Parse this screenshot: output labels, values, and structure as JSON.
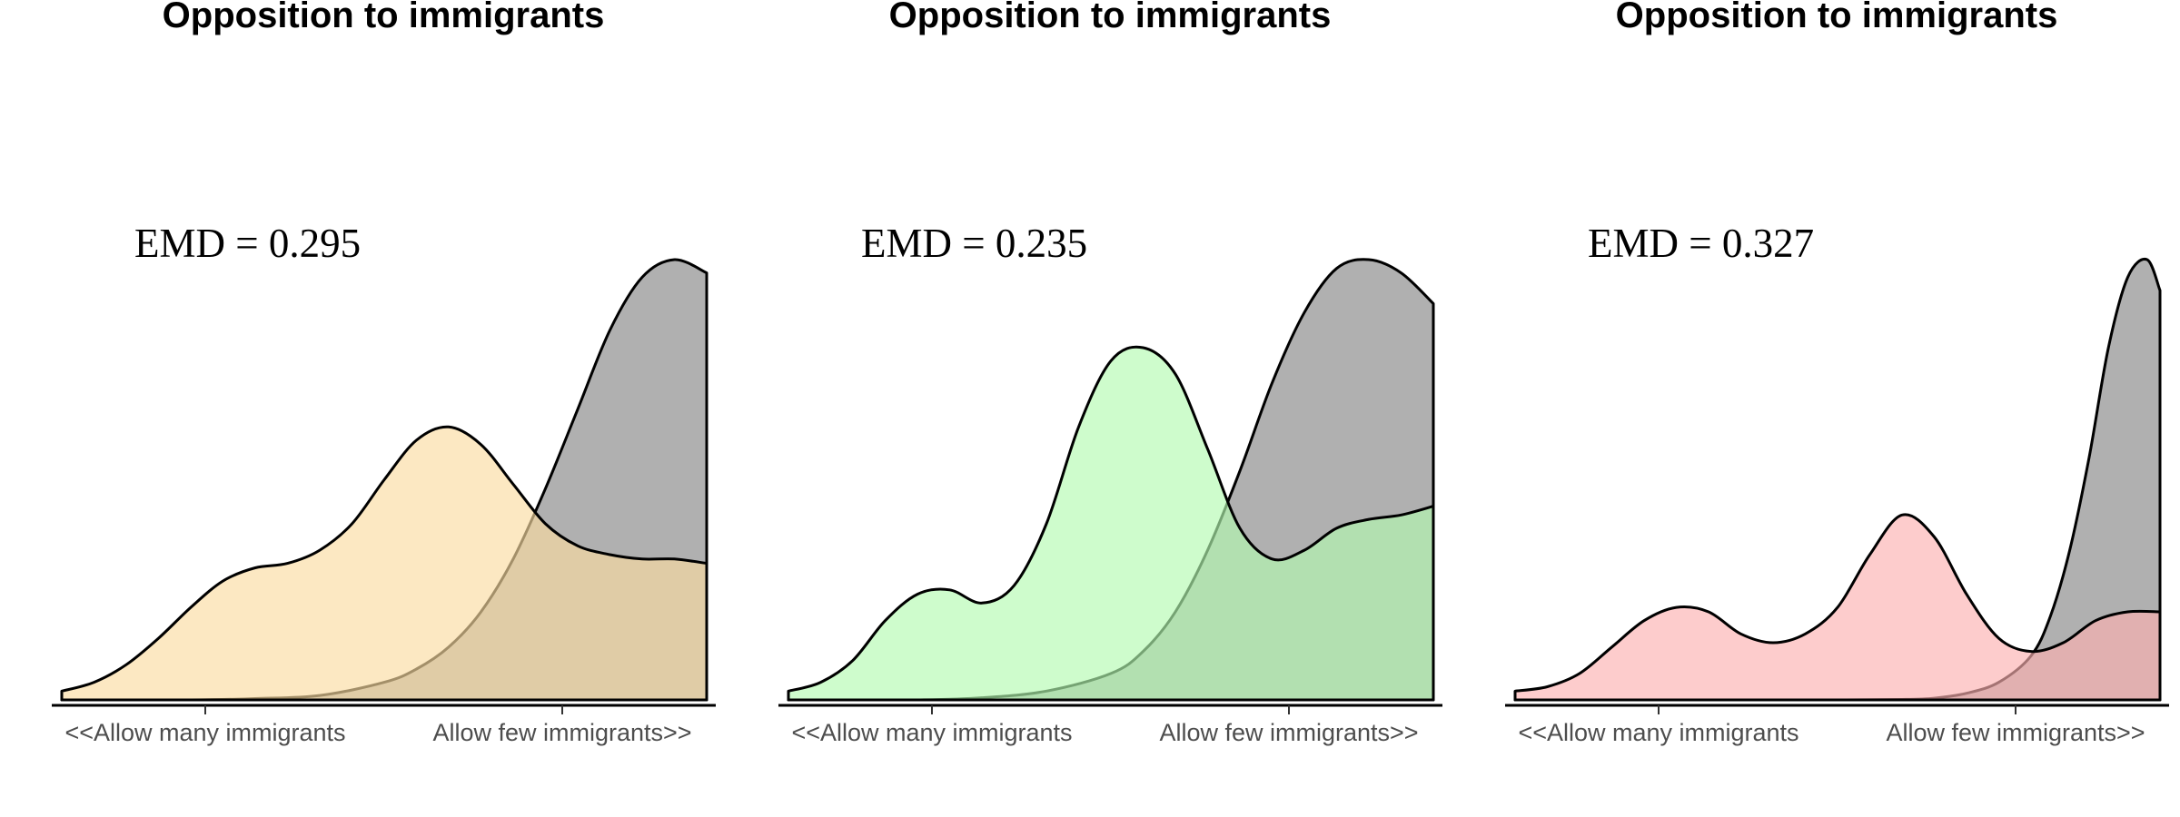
{
  "chart_data": [
    {
      "type": "area",
      "title": "Opposition to immigrants",
      "annotation": "EMD = 0.295",
      "x_tick_labels": [
        "<<Allow many immigrants",
        "Allow few immigrants>>"
      ],
      "x_ticks": [
        0.25,
        0.75
      ],
      "xlim": [
        0,
        1
      ],
      "ylim": [
        0,
        1
      ],
      "series": [
        {
          "color": "#b0b0b0",
          "x": [
            0.0,
            0.1,
            0.2,
            0.3,
            0.4,
            0.5,
            0.55,
            0.6,
            0.65,
            0.7,
            0.75,
            0.8,
            0.85,
            0.9,
            0.95,
            1.0
          ],
          "y": [
            0.0,
            0.0,
            0.0,
            0.003,
            0.01,
            0.04,
            0.07,
            0.12,
            0.2,
            0.32,
            0.48,
            0.66,
            0.84,
            0.96,
            1.0,
            0.97
          ]
        },
        {
          "color": "#fbdca2",
          "x": [
            0.0,
            0.05,
            0.1,
            0.15,
            0.2,
            0.25,
            0.3,
            0.35,
            0.4,
            0.45,
            0.5,
            0.55,
            0.6,
            0.65,
            0.7,
            0.75,
            0.8,
            0.85,
            0.9,
            0.95,
            1.0
          ],
          "y": [
            0.02,
            0.04,
            0.08,
            0.14,
            0.21,
            0.27,
            0.3,
            0.31,
            0.34,
            0.4,
            0.5,
            0.59,
            0.62,
            0.58,
            0.49,
            0.4,
            0.35,
            0.33,
            0.32,
            0.32,
            0.31
          ]
        }
      ]
    },
    {
      "type": "area",
      "title": "Opposition to immigrants",
      "annotation": "EMD = 0.235",
      "x_tick_labels": [
        "<<Allow many immigrants",
        "Allow few immigrants>>"
      ],
      "x_ticks": [
        0.25,
        0.75
      ],
      "xlim": [
        0,
        1
      ],
      "ylim": [
        0,
        1
      ],
      "series": [
        {
          "color": "#b0b0b0",
          "x": [
            0.0,
            0.1,
            0.2,
            0.3,
            0.4,
            0.5,
            0.55,
            0.6,
            0.65,
            0.7,
            0.75,
            0.8,
            0.85,
            0.9,
            0.95,
            1.0
          ],
          "y": [
            0.0,
            0.0,
            0.0,
            0.005,
            0.02,
            0.06,
            0.11,
            0.2,
            0.34,
            0.52,
            0.72,
            0.88,
            0.98,
            1.0,
            0.97,
            0.9
          ]
        },
        {
          "color": "#b3fbb0",
          "x": [
            0.0,
            0.05,
            0.1,
            0.15,
            0.2,
            0.25,
            0.3,
            0.35,
            0.4,
            0.45,
            0.5,
            0.55,
            0.6,
            0.65,
            0.7,
            0.75,
            0.8,
            0.85,
            0.9,
            0.95,
            1.0
          ],
          "y": [
            0.02,
            0.04,
            0.09,
            0.18,
            0.24,
            0.25,
            0.22,
            0.26,
            0.4,
            0.62,
            0.77,
            0.8,
            0.74,
            0.57,
            0.39,
            0.32,
            0.34,
            0.39,
            0.41,
            0.42,
            0.44
          ]
        }
      ]
    },
    {
      "type": "area",
      "title": "Opposition to immigrants",
      "annotation": "EMD = 0.327",
      "x_tick_labels": [
        "<<Allow many immigrants",
        "Allow few immigrants>>"
      ],
      "x_ticks": [
        0.25,
        0.75
      ],
      "xlim": [
        0,
        1
      ],
      "ylim": [
        0,
        1
      ],
      "series": [
        {
          "color": "#b0b0b0",
          "x": [
            0.0,
            0.1,
            0.2,
            0.3,
            0.4,
            0.5,
            0.6,
            0.65,
            0.7,
            0.75,
            0.8,
            0.83,
            0.86,
            0.89,
            0.92,
            0.95,
            0.98,
            1.0
          ],
          "y": [
            0.0,
            0.0,
            0.0,
            0.0,
            0.0,
            0.0,
            0.001,
            0.004,
            0.015,
            0.04,
            0.1,
            0.19,
            0.34,
            0.55,
            0.8,
            0.96,
            1.0,
            0.93
          ]
        },
        {
          "color": "#fcb1b1",
          "x": [
            0.0,
            0.05,
            0.1,
            0.15,
            0.2,
            0.25,
            0.3,
            0.35,
            0.4,
            0.45,
            0.5,
            0.55,
            0.6,
            0.65,
            0.7,
            0.75,
            0.8,
            0.85,
            0.9,
            0.95,
            1.0
          ],
          "y": [
            0.02,
            0.03,
            0.06,
            0.12,
            0.18,
            0.21,
            0.2,
            0.15,
            0.13,
            0.15,
            0.21,
            0.33,
            0.42,
            0.37,
            0.24,
            0.14,
            0.11,
            0.13,
            0.18,
            0.2,
            0.2
          ]
        }
      ]
    }
  ]
}
